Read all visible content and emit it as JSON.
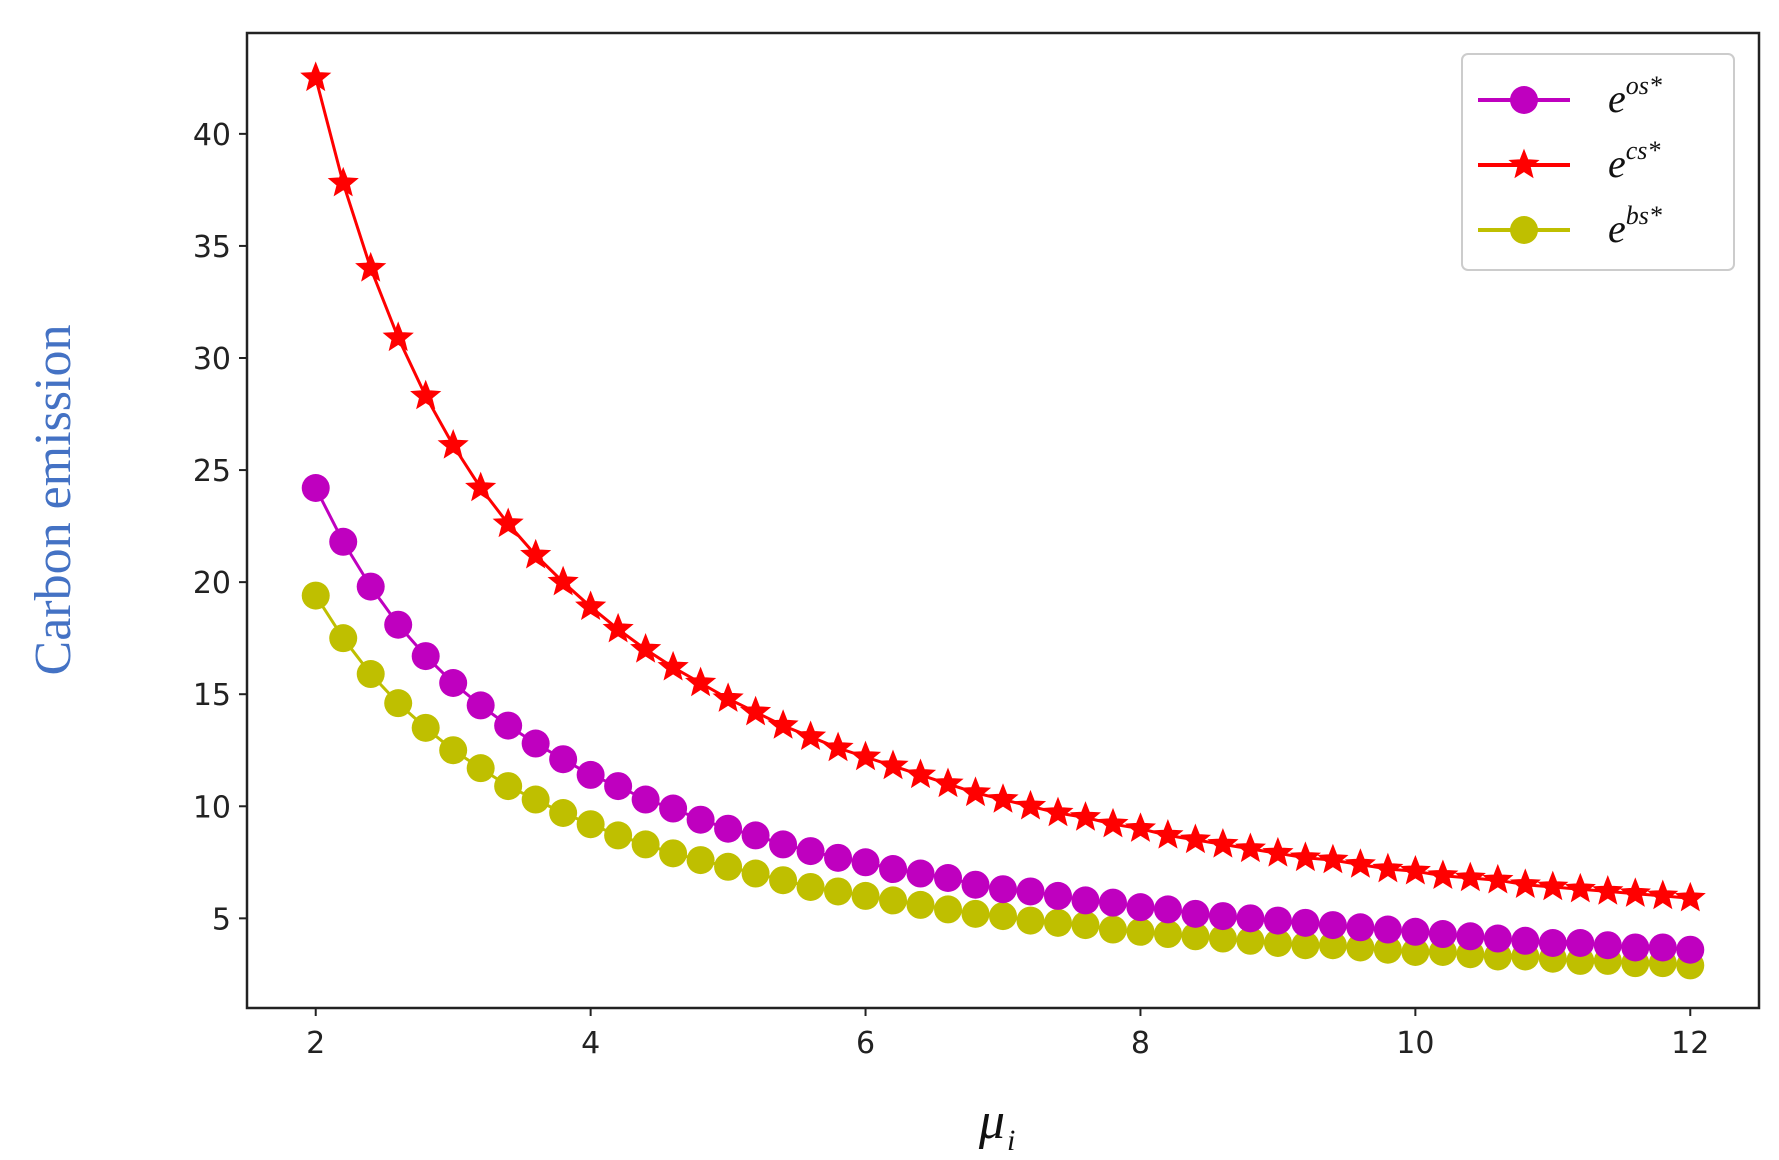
{
  "chart_data": {
    "type": "line",
    "title": "",
    "xlabel_main": "μ",
    "xlabel_sub": "i",
    "ylabel": "Carbon emission",
    "xlim": [
      1.5,
      12.5
    ],
    "ylim": [
      1.0,
      44.5
    ],
    "xticks": [
      2,
      4,
      6,
      8,
      10,
      12
    ],
    "yticks": [
      5,
      10,
      15,
      20,
      25,
      30,
      35,
      40
    ],
    "grid": false,
    "legend_position": "top-right",
    "x_start": 2,
    "x_step": 0.2,
    "series": [
      {
        "base": "e",
        "sup": "os*",
        "color": "#bf00bf",
        "marker": "circle",
        "values": [
          24.2,
          21.8,
          19.8,
          18.1,
          16.7,
          15.5,
          14.5,
          13.6,
          12.8,
          12.1,
          11.4,
          10.9,
          10.3,
          9.9,
          9.4,
          9.0,
          8.7,
          8.3,
          8.0,
          7.7,
          7.5,
          7.2,
          7.0,
          6.8,
          6.5,
          6.3,
          6.2,
          6.0,
          5.8,
          5.7,
          5.5,
          5.4,
          5.2,
          5.1,
          5.0,
          4.9,
          4.8,
          4.7,
          4.6,
          4.5,
          4.4,
          4.3,
          4.2,
          4.1,
          4.0,
          3.9,
          3.9,
          3.8,
          3.7,
          3.7,
          3.6
        ]
      },
      {
        "base": "e",
        "sup": "cs*",
        "color": "#ff0000",
        "marker": "star",
        "values": [
          42.5,
          37.8,
          34.0,
          30.9,
          28.3,
          26.1,
          24.2,
          22.6,
          21.2,
          20.0,
          18.9,
          17.9,
          17.0,
          16.2,
          15.5,
          14.8,
          14.2,
          13.6,
          13.1,
          12.6,
          12.2,
          11.8,
          11.4,
          11.0,
          10.6,
          10.3,
          10.0,
          9.7,
          9.5,
          9.2,
          9.0,
          8.7,
          8.5,
          8.3,
          8.1,
          7.9,
          7.7,
          7.6,
          7.4,
          7.2,
          7.1,
          6.9,
          6.8,
          6.7,
          6.5,
          6.4,
          6.3,
          6.2,
          6.1,
          6.0,
          5.9
        ]
      },
      {
        "base": "e",
        "sup": "bs*",
        "color": "#bfbf00",
        "marker": "circle",
        "values": [
          19.4,
          17.5,
          15.9,
          14.6,
          13.5,
          12.5,
          11.7,
          10.9,
          10.3,
          9.7,
          9.2,
          8.7,
          8.3,
          7.9,
          7.6,
          7.3,
          7.0,
          6.7,
          6.4,
          6.2,
          6.0,
          5.8,
          5.6,
          5.4,
          5.2,
          5.1,
          4.9,
          4.8,
          4.7,
          4.5,
          4.4,
          4.3,
          4.2,
          4.1,
          4.0,
          3.9,
          3.8,
          3.8,
          3.7,
          3.6,
          3.5,
          3.5,
          3.4,
          3.3,
          3.3,
          3.2,
          3.1,
          3.1,
          3.0,
          3.0,
          2.9
        ]
      }
    ]
  }
}
